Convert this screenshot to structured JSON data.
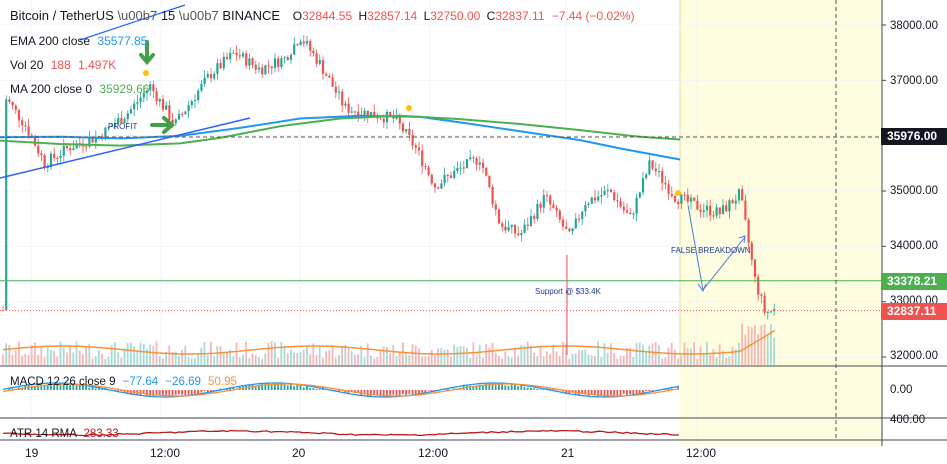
{
  "header": {
    "symbol": "Bitcoin / TetherUS",
    "interval": "15",
    "exchange": "BINANCE",
    "open_label": "O",
    "open": "32844.55",
    "high_label": "H",
    "high": "32857.14",
    "low_label": "L",
    "low": "32750.00",
    "close_label": "C",
    "close": "32837.11",
    "change": "−7.44 (−0.02%)"
  },
  "indicators": {
    "ema": {
      "label": "EMA 200 close",
      "value": "35577.85",
      "color": "#2196f3"
    },
    "vol": {
      "label": "Vol 20",
      "value1": "188",
      "value2": "1.497K",
      "color": "#ef5350"
    },
    "ma": {
      "label": "MA 200 close 0",
      "value": "35929.66",
      "color": "#4caf50"
    },
    "macd": {
      "label": "MACD 12 26 close 9",
      "v1": "−77.64",
      "v2": "−26.69",
      "v3": "50.95"
    },
    "atr": {
      "label": "ATR 14 RMA",
      "value": "283.33"
    }
  },
  "annotations": {
    "profit": "PROFIT",
    "false_breakdown": "FALSE BREAKDOWN",
    "support": "Support @ $33.4K"
  },
  "price_labels": {
    "crosshair": "35976.00",
    "support": "33378.21",
    "last": "32837.11"
  },
  "y_axis": {
    "ticks": [
      "38000.00",
      "37000.00",
      "36000.00",
      "35000.00",
      "34000.00",
      "33000.00",
      "32000.00"
    ],
    "macd_ticks": [
      "0.00",
      "-400.00"
    ],
    "atr_ticks": [
      "400.00"
    ]
  },
  "x_axis": {
    "ticks": [
      "19",
      "12:00",
      "20",
      "12:00",
      "21",
      "12:00"
    ]
  },
  "colors": {
    "up": "#26a69a",
    "down": "#ef5350",
    "ema": "#2196f3",
    "ma": "#4caf50",
    "vol_ma": "#f7923b",
    "highlight": "#fffde0",
    "support": "#4caf50",
    "crosshair_bg": "#131722",
    "last_bg": "#ef5350",
    "support_bg": "#4caf50"
  },
  "chart_data": {
    "type": "candlestick",
    "series": [
      {
        "name": "EMA 200 close",
        "points": [
          [
            0,
            35970
          ],
          [
            60,
            35980
          ],
          [
            120,
            35950
          ],
          [
            180,
            35995
          ],
          [
            240,
            36140
          ],
          [
            300,
            36310
          ],
          [
            360,
            36360
          ],
          [
            420,
            36340
          ],
          [
            460,
            36240
          ],
          [
            520,
            36080
          ],
          [
            580,
            35920
          ],
          [
            620,
            35770
          ],
          [
            680,
            35570
          ]
        ]
      },
      {
        "name": "MA 200 close 0",
        "points": [
          [
            0,
            35910
          ],
          [
            60,
            35850
          ],
          [
            120,
            35820
          ],
          [
            180,
            35860
          ],
          [
            220,
            35960
          ],
          [
            280,
            36170
          ],
          [
            340,
            36310
          ],
          [
            400,
            36360
          ],
          [
            460,
            36300
          ],
          [
            520,
            36210
          ],
          [
            580,
            36100
          ],
          [
            640,
            35980
          ],
          [
            680,
            35930
          ]
        ]
      }
    ],
    "price_levels": [
      {
        "name": "support",
        "value": 33378
      },
      {
        "name": "crosshair",
        "value": 35976
      },
      {
        "name": "last",
        "value": 32837
      }
    ],
    "ylim": [
      31900,
      38250
    ],
    "annotations": [
      "PROFIT",
      "FALSE BREAKDOWN",
      "Support @ $33.4K"
    ]
  }
}
